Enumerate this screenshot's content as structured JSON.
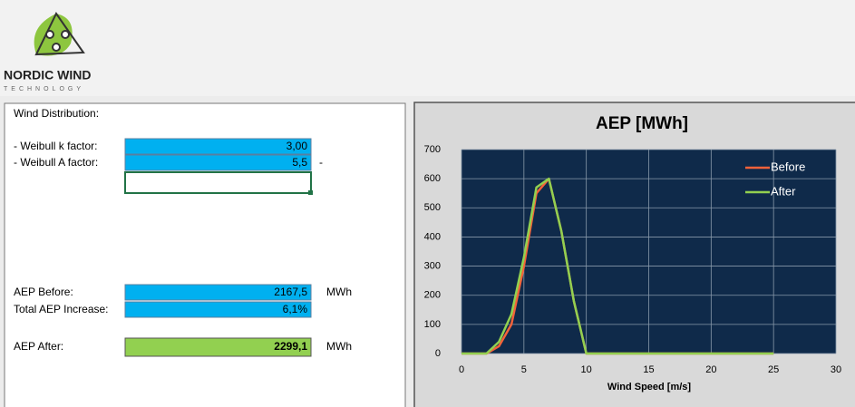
{
  "logo": {
    "name": "NORDIC WIND",
    "tagline": "TECHNOLOGY"
  },
  "panel": {
    "heading": "Wind Distribution:",
    "k_label": "- Weibull k factor:",
    "k_value": "3,00",
    "a_label": "- Weibull A factor:",
    "a_value": "5,5",
    "a_unit": "-",
    "aep_before_label": "AEP Before:",
    "aep_before_value": "2167,5",
    "aep_before_unit": "MWh",
    "increase_label": "Total AEP Increase:",
    "increase_value": "6,1%",
    "aep_after_label": "AEP After:",
    "aep_after_value": "2299,1",
    "aep_after_unit": "MWh"
  },
  "chart_data": {
    "type": "line",
    "title": "AEP [MWh]",
    "xlabel": "Wind Speed [m/s]",
    "x": [
      0,
      1,
      2,
      3,
      4,
      5,
      6,
      7,
      8,
      9,
      10,
      11,
      12,
      13,
      14,
      15,
      16,
      17,
      18,
      19,
      20,
      21,
      22,
      23,
      24,
      25
    ],
    "series": [
      {
        "name": "Before",
        "color": "#f4623a",
        "values": [
          0,
          0,
          0,
          25,
          100,
          300,
          550,
          600,
          420,
          180,
          0,
          0,
          0,
          0,
          0,
          0,
          0,
          0,
          0,
          0,
          0,
          0,
          0,
          0,
          0,
          0
        ]
      },
      {
        "name": "After",
        "color": "#92d050",
        "values": [
          0,
          0,
          0,
          40,
          135,
          330,
          570,
          600,
          420,
          180,
          0,
          0,
          0,
          0,
          0,
          0,
          0,
          0,
          0,
          0,
          0,
          0,
          0,
          0,
          0,
          0
        ]
      }
    ],
    "xlim": [
      0,
      30
    ],
    "xticks": [
      0,
      5,
      10,
      15,
      20,
      25,
      30
    ],
    "ylim": [
      0,
      700
    ],
    "yticks": [
      0,
      100,
      200,
      300,
      400,
      500,
      600,
      700
    ],
    "grid": true,
    "legend": "upper right",
    "plot_background": "#0f2a4a"
  }
}
